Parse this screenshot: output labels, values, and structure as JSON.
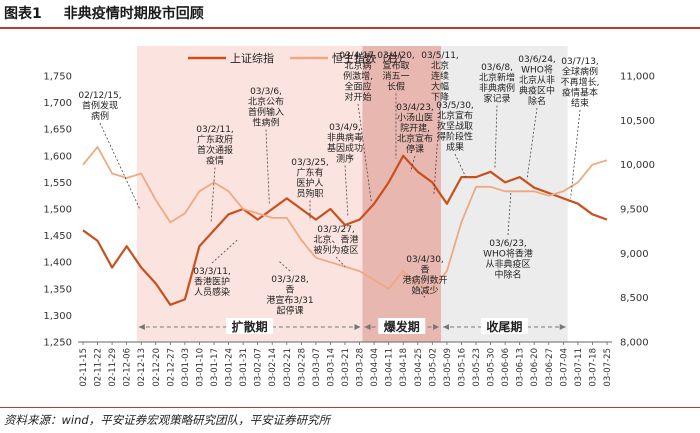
{
  "header": {
    "figure_label": "图表1",
    "title": "非典疫情时期股市回顾"
  },
  "footer": {
    "source": "资料来源：wind，平安证券宏观策略研究团队，平安证券研究所"
  },
  "colors": {
    "sse": "#c8501e",
    "hsi": "#f0a882",
    "shade_light": "#fbe4df",
    "shade_dark": "#e8b7b0",
    "shade_gray": "#ececec",
    "rule": "#c0392b"
  },
  "chart_data": {
    "type": "line",
    "title": "非典疫情时期股市回顾",
    "x": [
      "02-11-15",
      "02-11-22",
      "02-11-29",
      "02-12-06",
      "02-12-13",
      "02-12-20",
      "02-12-27",
      "03-01-03",
      "03-01-10",
      "03-01-17",
      "03-01-24",
      "03-01-31",
      "03-02-07",
      "03-02-14",
      "03-02-21",
      "03-02-28",
      "03-03-07",
      "03-03-14",
      "03-03-21",
      "03-03-28",
      "03-04-04",
      "03-04-11",
      "03-04-18",
      "03-04-25",
      "03-05-02",
      "03-05-09",
      "03-05-16",
      "03-05-23",
      "03-05-30",
      "03-06-06",
      "03-06-13",
      "03-06-20",
      "03-06-27",
      "03-07-04",
      "03-07-11",
      "03-07-18",
      "03-07-25"
    ],
    "y_left": {
      "min": 1250,
      "max": 1750,
      "ticks": [
        "1,250",
        "1,300",
        "1,350",
        "1,400",
        "1,450",
        "1,500",
        "1,550",
        "1,600",
        "1,650",
        "1,700",
        "1,750"
      ]
    },
    "y_right": {
      "min": 8000,
      "max": 11000,
      "ticks": [
        "8,000",
        "8,500",
        "9,000",
        "9,500",
        "10,000",
        "10,500",
        "11,000"
      ]
    },
    "legend": [
      {
        "label": "上证综指",
        "axis": "left"
      },
      {
        "label": "恒生指数（右）",
        "axis": "right"
      }
    ],
    "series": [
      {
        "name": "上证综指",
        "axis": "left",
        "values": [
          1460,
          1440,
          1390,
          1430,
          1390,
          1360,
          1320,
          1330,
          1430,
          1460,
          1490,
          1500,
          1480,
          1500,
          1520,
          1500,
          1480,
          1500,
          1470,
          1480,
          1510,
          1550,
          1600,
          1570,
          1550,
          1510,
          1560,
          1560,
          1570,
          1550,
          1560,
          1540,
          1530,
          1520,
          1510,
          1490,
          1480
        ]
      },
      {
        "name": "恒生指数（右）",
        "axis": "right",
        "values": [
          10000,
          10200,
          9900,
          9850,
          9900,
          9600,
          9350,
          9450,
          9700,
          9800,
          9700,
          9500,
          9450,
          9400,
          9400,
          9150,
          8950,
          8900,
          8850,
          8800,
          8700,
          8600,
          8800,
          8650,
          8600,
          8800,
          9350,
          9750,
          9750,
          9700,
          9700,
          9700,
          9650,
          9700,
          9800,
          10000,
          10050
        ]
      }
    ],
    "phases": [
      {
        "label": "扩散期"
      },
      {
        "label": "爆发期"
      },
      {
        "label": "收尾期"
      }
    ],
    "annotations": [
      {
        "text": "02/12/15,首例发现病例"
      },
      {
        "text": "03/2/11,广东政府首次通报疫情"
      },
      {
        "text": "03/3/6,北京公布首例输入性病例"
      },
      {
        "text": "03/3/25,广东有医护人员殉职"
      },
      {
        "text": "03/4/9,非典病毒基因成功测序"
      },
      {
        "text": "03/4/17,北京病例激增,全面应对开始"
      },
      {
        "text": "03/4/20,宣布取消五一长假"
      },
      {
        "text": "03/4/23,小汤山医院开建,北京宣布停课"
      },
      {
        "text": "03/5/11,北京连续大幅下降"
      },
      {
        "text": "03/5/30,北京宣布攻坚战取得阶段性成果"
      },
      {
        "text": "03/6/8,北京新增非典病例家记录"
      },
      {
        "text": "03/6/24,WHO将北京从非典疫区中除名"
      },
      {
        "text": "03/7/13,全球病例不再增长,疫情基本结束"
      },
      {
        "text": "03/3/11,香港医护人员感染"
      },
      {
        "text": "03/3/28,香港宣布3/31起停课"
      },
      {
        "text": "03/3/27,北京、香港被列为疫区"
      },
      {
        "text": "03/4/30,香港病例数开始减少"
      },
      {
        "text": "03/6/23,WHO将香港从非典疫区中除名"
      }
    ]
  }
}
